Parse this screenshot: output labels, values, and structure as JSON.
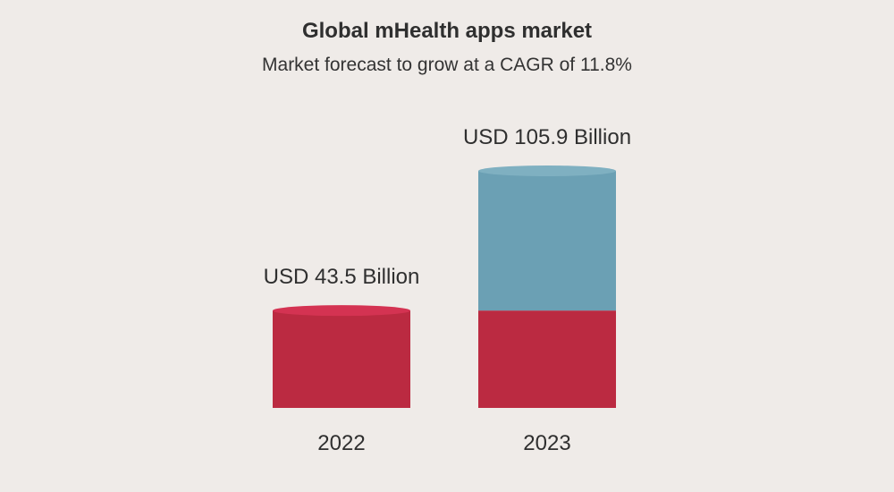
{
  "colors": {
    "background": "#efebe8",
    "base_segment": "#bb2a41",
    "base_segment_top": "#d43352",
    "growth_segment": "#6ba0b4",
    "growth_segment_top": "#7fb0c1",
    "text": "#2f2f2f"
  },
  "chart_data": {
    "type": "bar",
    "title": "Global mHealth apps market",
    "subtitle": "Market forecast to grow at a CAGR of 11.8%",
    "xlabel": "",
    "ylabel": "",
    "categories": [
      "2022",
      "2023"
    ],
    "values": [
      43.5,
      105.9
    ],
    "data_labels": [
      "USD 43.5 Billion",
      "USD 105.9 Billion"
    ],
    "style": "cylinder",
    "grid": false,
    "legend": "none"
  }
}
